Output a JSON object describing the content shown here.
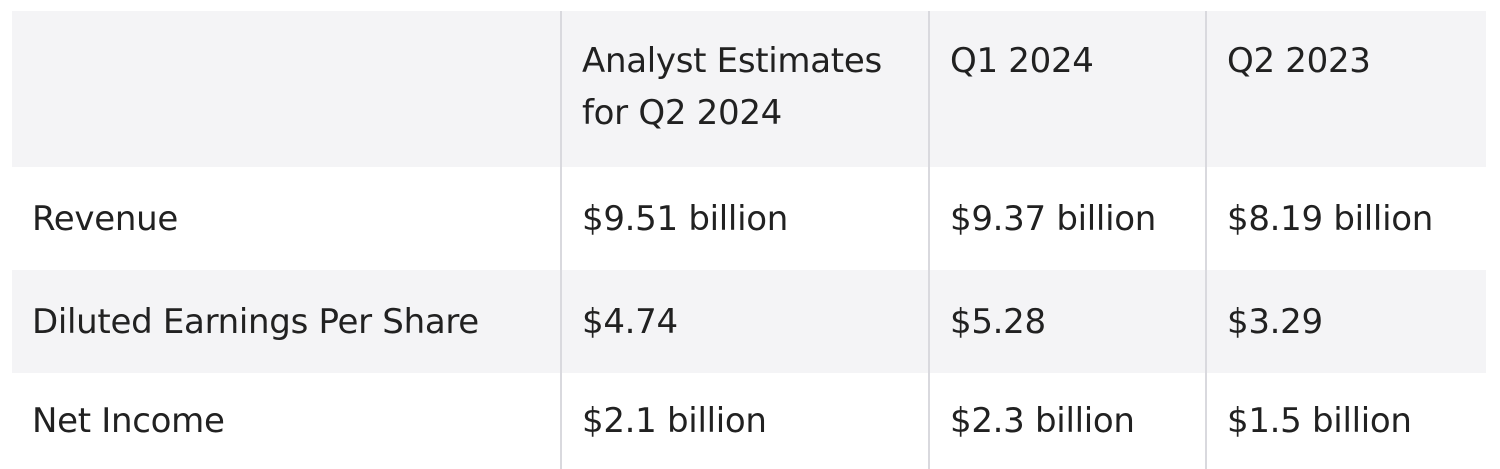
{
  "table": {
    "headers": [
      "",
      "Analyst Estimates for Q2 2024",
      "Q1 2024",
      "Q2 2023"
    ],
    "rows": [
      {
        "label": "Revenue",
        "values": [
          "$9.51 billion",
          "$9.37 billion",
          "$8.19 billion"
        ]
      },
      {
        "label": "Diluted Earnings Per Share",
        "values": [
          "$4.74",
          "$5.28",
          "$3.29"
        ]
      },
      {
        "label": "Net Income",
        "values": [
          "$2.1 billion",
          "$2.3 billion",
          "$1.5 billion"
        ]
      }
    ]
  },
  "colors": {
    "header_bg": "#f4f4f6",
    "shaded_row_bg": "#f4f4f6",
    "plain_row_bg": "#ffffff",
    "divider": "#d9d9de",
    "text": "#212121"
  }
}
